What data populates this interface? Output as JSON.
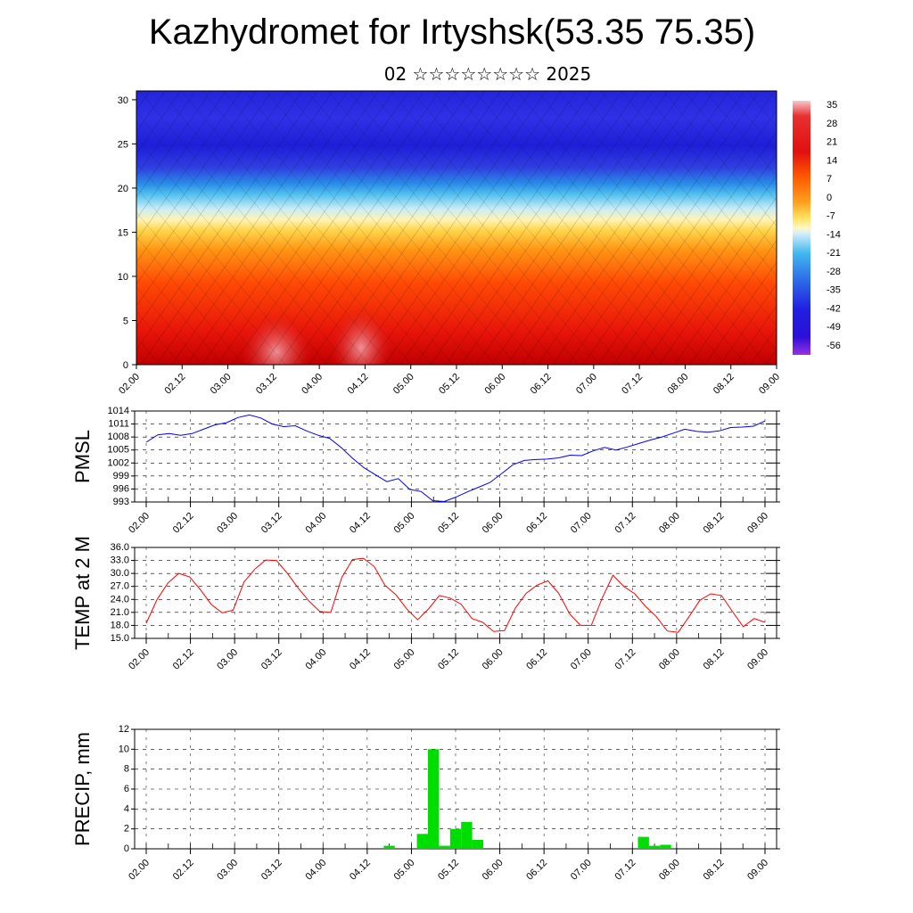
{
  "header": {
    "title": "Kazhydromet for Irtyshsk(53.35 75.35)",
    "subtitle": "02 ☆☆☆☆☆☆☆☆ 2025"
  },
  "chart_data": [
    {
      "type": "heatmap",
      "name": "cross-section",
      "xlabel": "",
      "ylabel": "",
      "x_ticks": [
        "02.00",
        "02.12",
        "03.00",
        "03.12",
        "04.00",
        "04.12",
        "05.00",
        "05.12",
        "06.00",
        "06.12",
        "07.00",
        "07.12",
        "08.00",
        "08.12",
        "09.00"
      ],
      "ylim": [
        0,
        31
      ],
      "y_ticks": [
        0,
        5,
        10,
        15,
        20,
        25,
        30
      ],
      "colorbar_labels": [
        "35",
        "28",
        "21",
        "14",
        "7",
        "0",
        "-7",
        "-14",
        "-21",
        "-28",
        "-35",
        "-42",
        "-49",
        "-56"
      ],
      "colors": [
        "#f5c6cc",
        "#e01010",
        "#ff5000",
        "#ff9a1a",
        "#ffd84a",
        "#fff6b0",
        "#c8eaf5",
        "#2ab3f0",
        "#2e6fe8",
        "#2020e0",
        "#3a10d8",
        "#9a30e0"
      ]
    },
    {
      "type": "line",
      "name": "pmsl",
      "ylabel": "PMSL",
      "x_ticks": [
        "02.00",
        "02.12",
        "03.00",
        "03.12",
        "04.00",
        "04.12",
        "05.00",
        "05.12",
        "06.00",
        "06.12",
        "07.00",
        "07.12",
        "08.00",
        "08.12",
        "09.00"
      ],
      "ylim": [
        993,
        1014
      ],
      "y_ticks": [
        "1014",
        "1011",
        "1008",
        "1005",
        "1002",
        "999",
        "996",
        "993"
      ],
      "color": "#0000ff",
      "values": [
        1006.8,
        1008.5,
        1008.8,
        1008.4,
        1008.8,
        1009.8,
        1010.8,
        1011.3,
        1012.5,
        1013.1,
        1012.4,
        1011.0,
        1010.4,
        1010.6,
        1009.4,
        1008.4,
        1007.7,
        1005.6,
        1003.1,
        1000.9,
        999.3,
        997.7,
        998.4,
        995.9,
        995.4,
        993.3,
        993.1,
        994.1,
        995.3,
        996.4,
        997.5,
        999.5,
        1001.6,
        1002.6,
        1002.8,
        1002.9,
        1003.2,
        1003.8,
        1003.7,
        1004.8,
        1005.6,
        1005.0,
        1005.7,
        1006.5,
        1007.3,
        1008.0,
        1008.9,
        1009.8,
        1009.3,
        1009.1,
        1009.4,
        1010.2,
        1010.3,
        1010.5,
        1011.7
      ]
    },
    {
      "type": "line",
      "name": "temp2m",
      "ylabel": "TEMP at 2 M",
      "x_ticks": [
        "02.00",
        "02.12",
        "03.00",
        "03.12",
        "04.00",
        "04.12",
        "05.00",
        "05.12",
        "06.00",
        "06.12",
        "07.00",
        "07.12",
        "08.00",
        "08.12",
        "09.00"
      ],
      "ylim": [
        15.0,
        36.0
      ],
      "y_ticks": [
        "36.0",
        "33.0",
        "30.0",
        "27.0",
        "24.0",
        "21.0",
        "18.0",
        "15.0"
      ],
      "color": "#ff0000",
      "values": [
        18.5,
        24.0,
        27.8,
        30.0,
        29.2,
        26.2,
        22.8,
        20.9,
        21.5,
        28.0,
        31.0,
        33.1,
        33.0,
        30.0,
        26.6,
        23.6,
        21.2,
        21.0,
        29.0,
        33.2,
        33.5,
        31.6,
        27.2,
        25.1,
        21.8,
        19.3,
        21.8,
        24.9,
        24.3,
        22.9,
        19.6,
        18.7,
        16.6,
        16.8,
        22.0,
        25.4,
        27.3,
        28.3,
        25.4,
        20.7,
        18.0,
        18.0,
        24.3,
        29.6,
        27.0,
        25.3,
        22.4,
        20.0,
        16.7,
        16.4,
        20.0,
        23.8,
        25.3,
        24.9,
        21.2,
        17.7,
        19.6,
        18.7
      ]
    },
    {
      "type": "bar",
      "name": "precip",
      "ylabel": "PRECIP, mm",
      "x_ticks": [
        "02.00",
        "02.12",
        "03.00",
        "03.12",
        "04.00",
        "04.12",
        "05.00",
        "05.12",
        "06.00",
        "06.12",
        "07.00",
        "07.12",
        "08.00",
        "08.12",
        "09.00"
      ],
      "ylim": [
        0,
        12
      ],
      "y_ticks": [
        "12",
        "10",
        "8",
        "6",
        "4",
        "2",
        "0"
      ],
      "color": "#00dd00",
      "values": [
        0,
        0,
        0,
        0,
        0,
        0,
        0,
        0,
        0,
        0,
        0,
        0,
        0,
        0,
        0,
        0,
        0,
        0,
        0,
        0,
        0,
        0,
        0.3,
        0,
        0,
        1.5,
        10.0,
        0.3,
        2.0,
        2.7,
        0.9,
        0,
        0,
        0,
        0,
        0,
        0,
        0,
        0,
        0,
        0,
        0,
        0,
        0,
        0,
        1.2,
        0.3,
        0.4,
        0,
        0,
        0,
        0,
        0,
        0,
        0,
        0,
        0
      ]
    }
  ]
}
